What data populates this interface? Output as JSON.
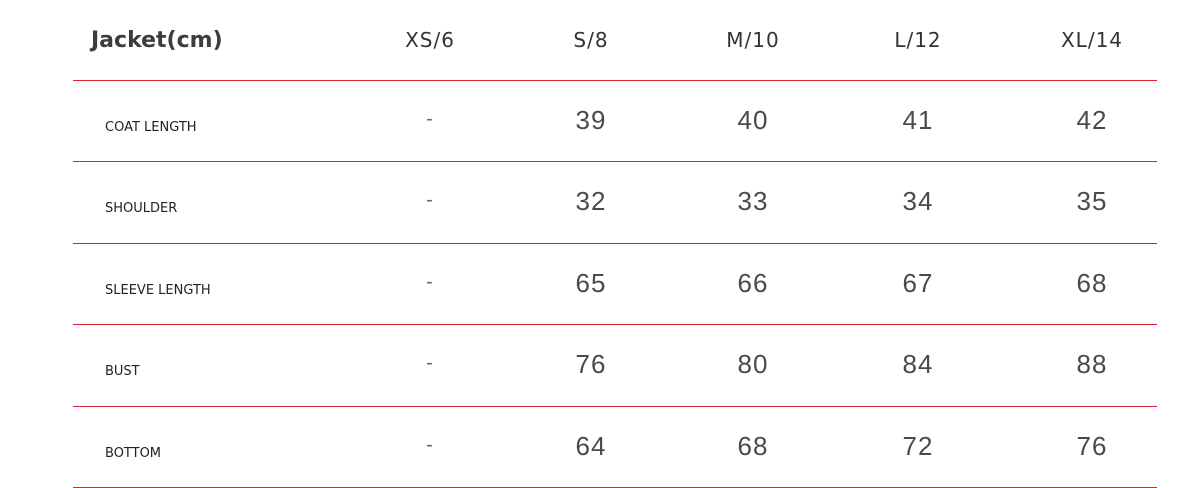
{
  "table": {
    "title": "Jacket(cm)",
    "columns": [
      "XS/6",
      "S/8",
      "M/10",
      "L/12",
      "XL/14"
    ],
    "rows": [
      {
        "label": "COAT LENGTH",
        "values": [
          "-",
          "39",
          "40",
          "41",
          "42"
        ]
      },
      {
        "label": "SHOULDER",
        "values": [
          "-",
          "32",
          "33",
          "34",
          "35"
        ]
      },
      {
        "label": "SLEEVE LENGTH",
        "values": [
          "-",
          "65",
          "66",
          "67",
          "68"
        ]
      },
      {
        "label": "BUST",
        "values": [
          "-",
          "76",
          "80",
          "84",
          "88"
        ]
      },
      {
        "label": "BOTTOM",
        "values": [
          "-",
          "64",
          "68",
          "72",
          "76"
        ]
      }
    ],
    "divider_color": "#d9232e"
  }
}
